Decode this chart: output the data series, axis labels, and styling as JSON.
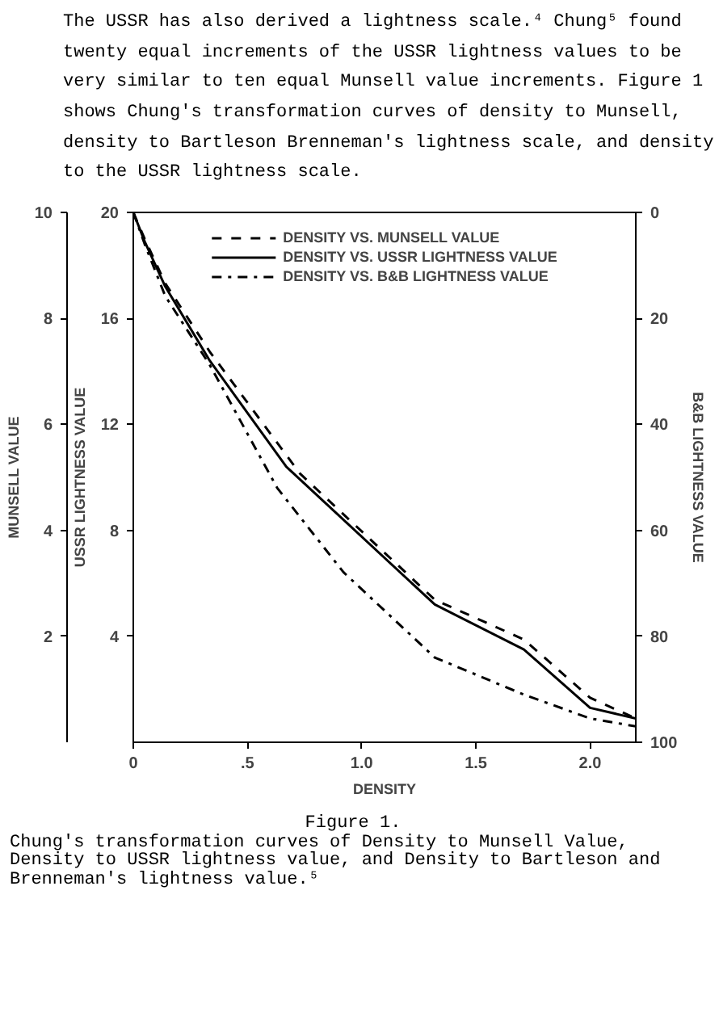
{
  "chart_data": {
    "type": "line",
    "annotations": [
      "The USSR has also derived a lightness scale.⁴ Chung⁵ found twenty equal increments of the USSR lightness values to be very similar to ten equal Munsell value increments. Figure 1 shows Chung's transformation curves of density to Munsell, density to Bartleson Brenneman's lightness scale, and density to the USSR lightness scale.",
      "Figure 1.",
      "Chung's transformation curves of Density to Munsell Value, Density to USSR lightness value, and Density to Bartleson and Brenneman's lightness value.⁵"
    ],
    "xlabel": "DENSITY",
    "ylabel": "USSR LIGHTNESS VALUE",
    "y2label": "MUNSELL VALUE",
    "y3label": "B&B LIGHTNESS VALUE",
    "xlim": [
      0,
      2.2
    ],
    "xticks": [
      0,
      {
        "value": 0.5,
        "label": ".5"
      },
      {
        "value": 1,
        "label": "1.0"
      },
      1.5,
      {
        "value": 2,
        "label": "2.0"
      }
    ],
    "ylim": [
      0,
      20
    ],
    "yticks": [
      4,
      8,
      12,
      16,
      20
    ],
    "y2lim": [
      0,
      10
    ],
    "y2ticks": [
      2,
      4,
      6,
      8,
      10
    ],
    "y3lim": [
      100,
      0
    ],
    "y3ticks": [
      0,
      20,
      40,
      60,
      80,
      100
    ],
    "grid": false,
    "legend": "top",
    "series": [
      {
        "name": "DENSITY VS. MUNSELL VALUE",
        "color": "#000000",
        "axis": "y2",
        "line_style": "dashed",
        "x": [
          0,
          0.05,
          0.14,
          0.335,
          0.73,
          1.32,
          1.71,
          2.0,
          2.2
        ],
        "values": [
          10,
          9.5,
          8.66,
          7.37,
          5.07,
          2.69,
          1.94,
          0.84,
          0.45
        ]
      },
      {
        "name": "DENSITY VS. USSR LIGHTNESS VALUE",
        "color": "#000000",
        "line_style": "solid",
        "x": [
          0,
          0.05,
          0.14,
          0.335,
          0.67,
          1.32,
          1.71,
          2.0,
          2.2
        ],
        "values": [
          20,
          18.9,
          17.2,
          14.4,
          10.4,
          5.2,
          3.5,
          1.3,
          0.9
        ]
      },
      {
        "name": "DENSITY VS. B&B LIGHTNESS VALUE",
        "color": "#000000",
        "axis": "y3",
        "line_style": "dashdot",
        "x": [
          0,
          0.05,
          0.14,
          0.335,
          0.63,
          0.92,
          1.32,
          1.71,
          2.0,
          2.2
        ],
        "values": [
          0,
          6,
          15.8,
          28.8,
          52,
          67.9,
          84,
          91,
          95.5,
          97
        ]
      }
    ]
  }
}
